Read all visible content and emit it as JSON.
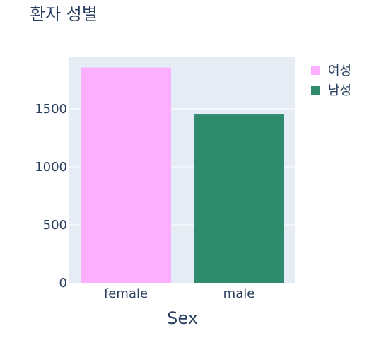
{
  "chart_data": {
    "type": "bar",
    "title": "환자 성별",
    "xlabel": "Sex",
    "ylabel": "",
    "categories": [
      "female",
      "male"
    ],
    "series": [
      {
        "name": "여성",
        "category": "female",
        "value": 1855,
        "color": "#FBAFFE"
      },
      {
        "name": "남성",
        "category": "male",
        "value": 1456,
        "color": "#2E8B6E"
      }
    ],
    "ylim": [
      0,
      1950
    ],
    "yticks": [
      0,
      500,
      1000,
      1500
    ],
    "ytick_labels": [
      "0",
      "500",
      "1000",
      "1500"
    ],
    "grid": true,
    "legend_position": "top-right",
    "plot_background": "#E5ECF6"
  }
}
